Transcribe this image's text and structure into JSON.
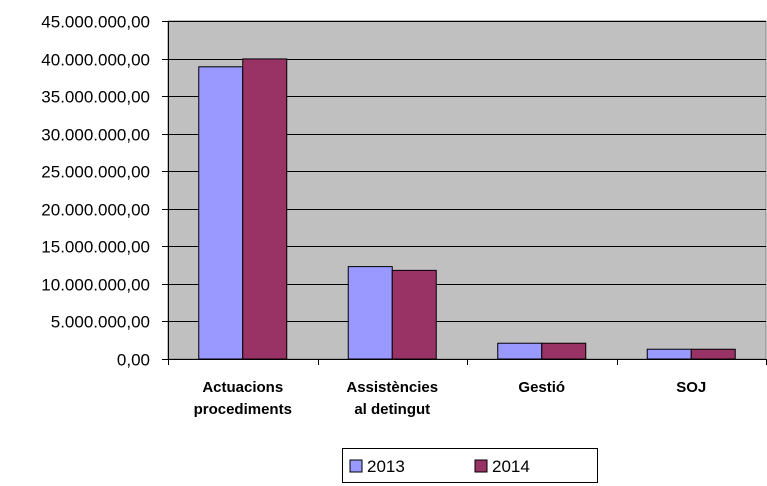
{
  "chart_data": {
    "type": "bar",
    "title": "",
    "xlabel": "",
    "ylabel": "",
    "categories": [
      [
        "Actuacions",
        "procediments"
      ],
      [
        "Assistències",
        "al detingut"
      ],
      [
        "Gestió"
      ],
      [
        "SOJ"
      ]
    ],
    "series": [
      {
        "name": "2013",
        "color": "#9999ff",
        "values": [
          38900000,
          12300000,
          2100000,
          1300000
        ]
      },
      {
        "name": "2014",
        "color": "#993366",
        "values": [
          39950000,
          11800000,
          2100000,
          1300000
        ]
      }
    ],
    "ylim": [
      0,
      45000000
    ],
    "yticks": [
      0,
      5000000,
      10000000,
      15000000,
      20000000,
      25000000,
      30000000,
      35000000,
      40000000,
      45000000
    ],
    "ytick_labels": [
      "0,00",
      "5.000.000,00",
      "10.000.000,00",
      "15.000.000,00",
      "20.000.000,00",
      "25.000.000,00",
      "30.000.000,00",
      "35.000.000,00",
      "40.000.000,00",
      "45.000.000,00"
    ],
    "plot_background": "#c0c0c0",
    "grid": true,
    "legend_position": "bottom"
  }
}
